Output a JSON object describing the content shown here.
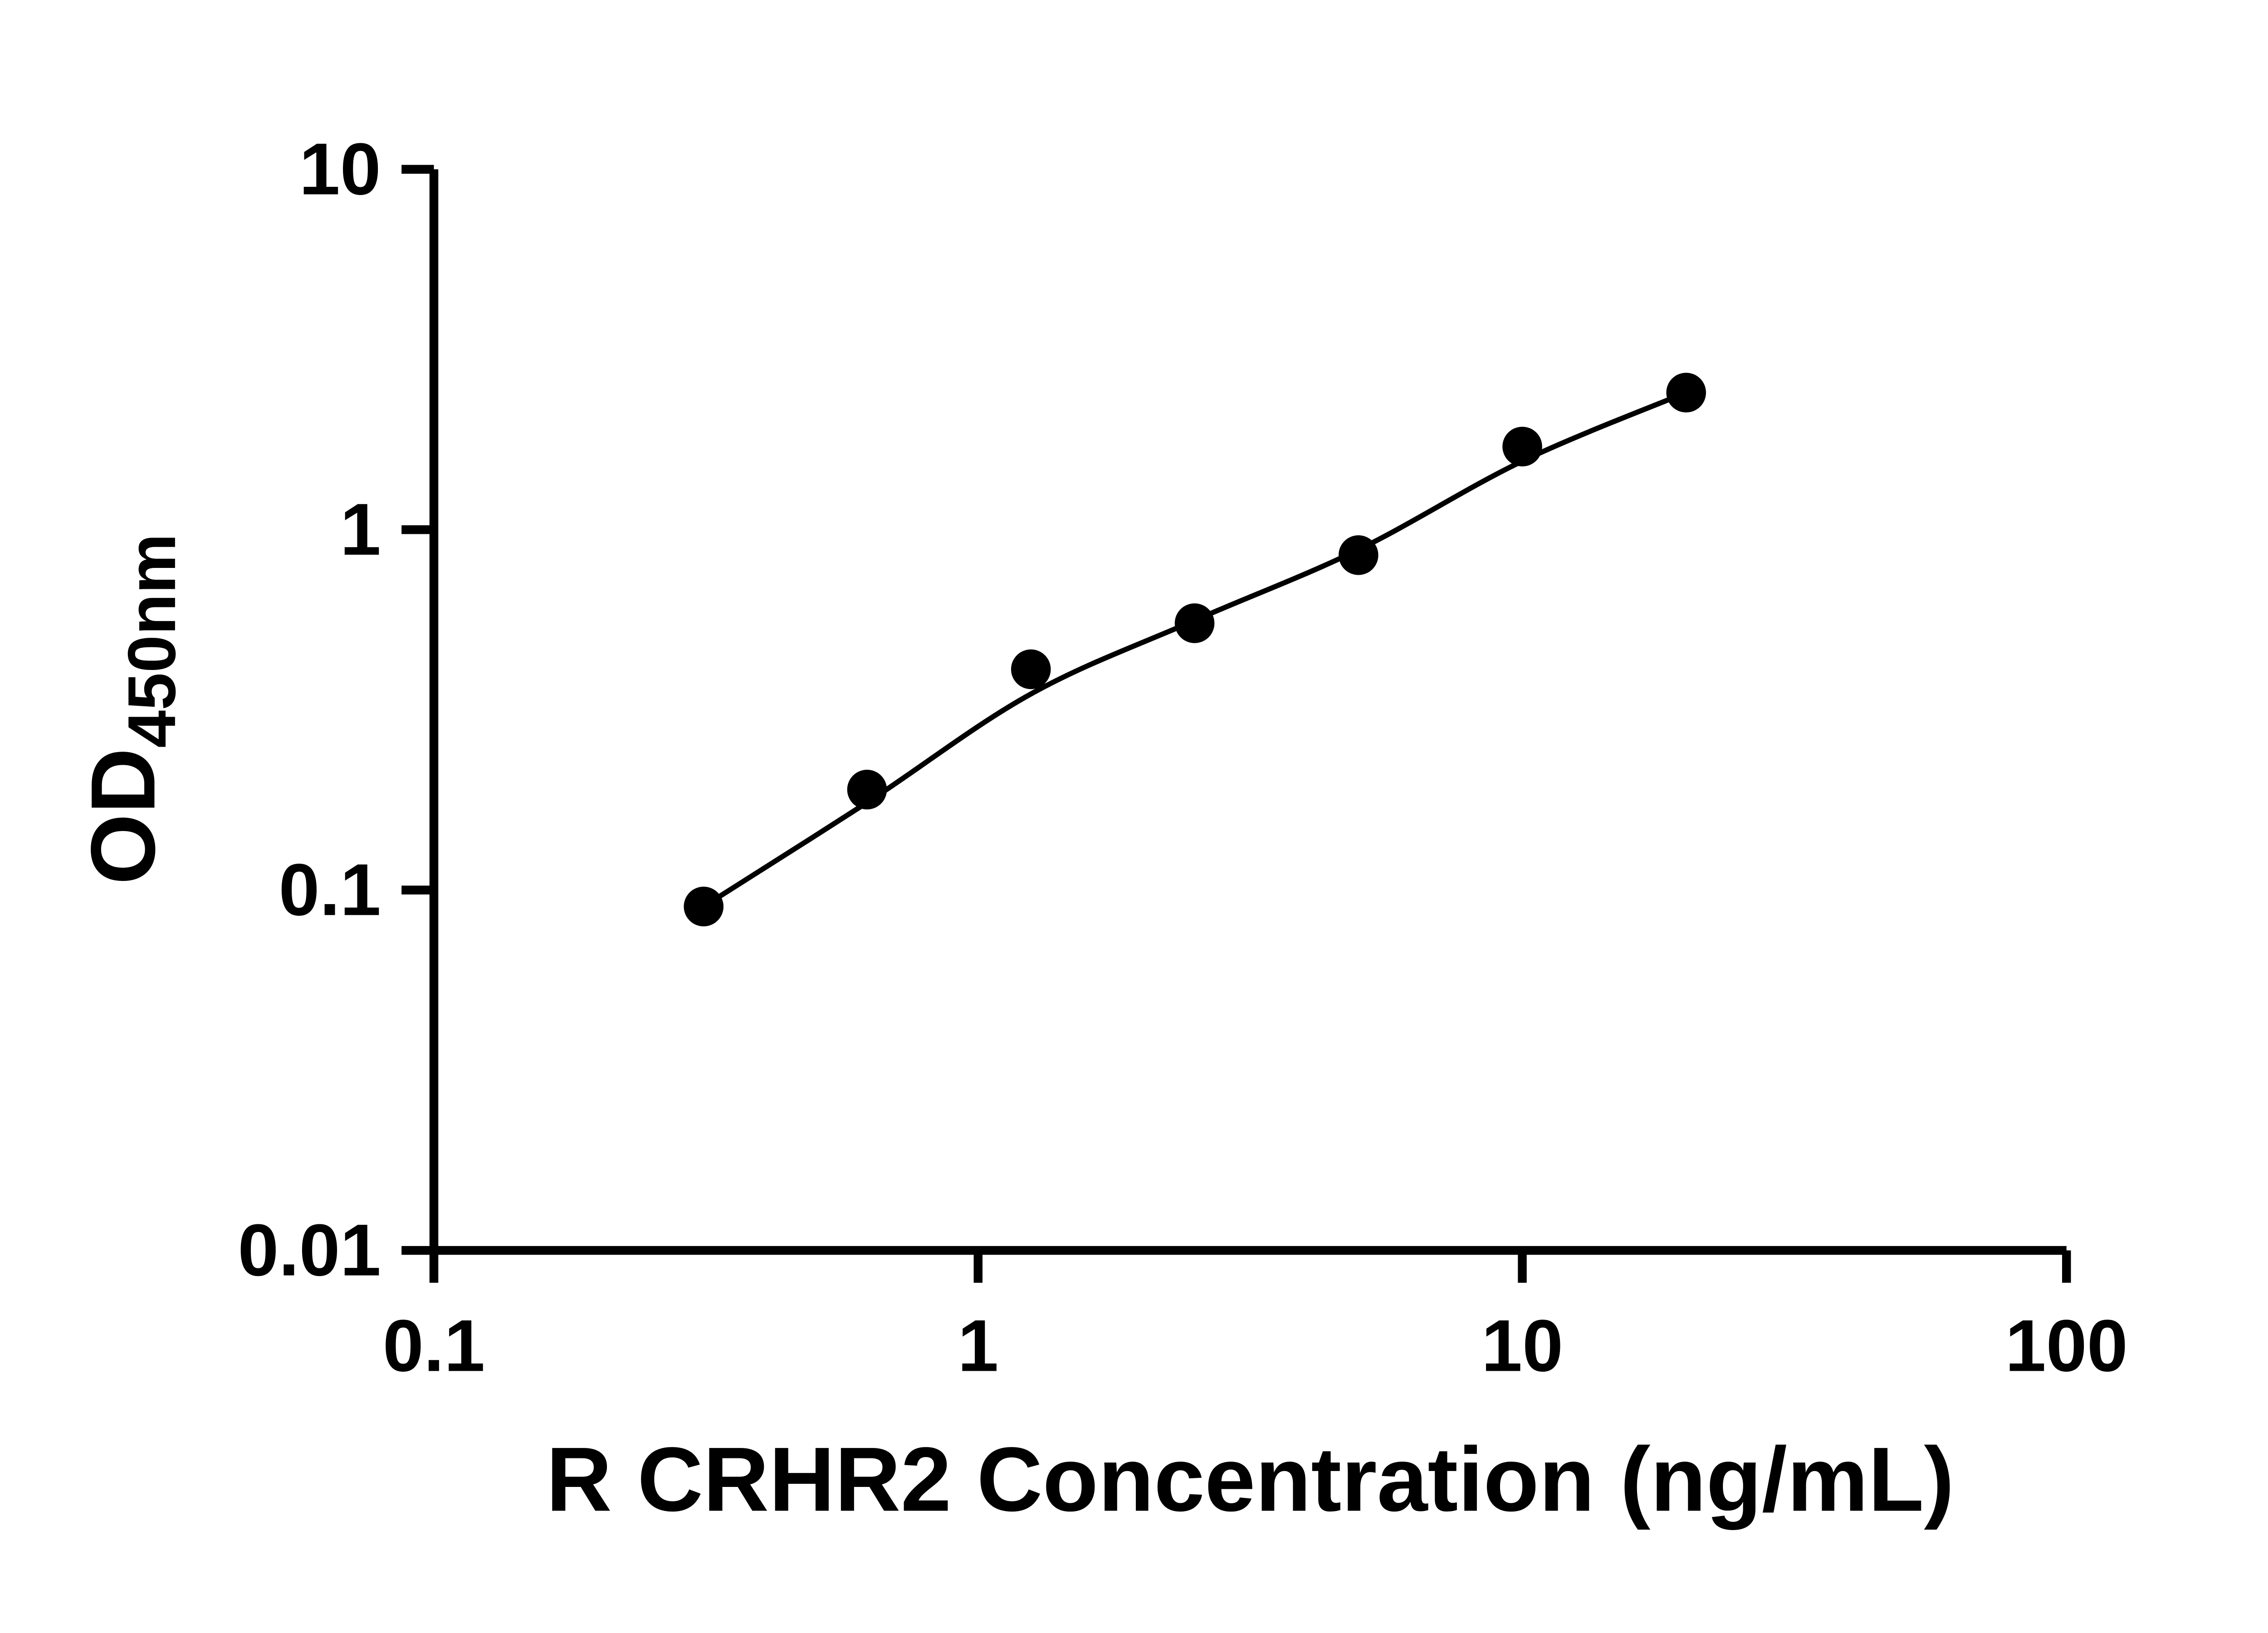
{
  "chart_data": {
    "type": "scatter",
    "title": "",
    "xlabel": "R CRHR2 Concentration (ng/mL)",
    "ylabel": "OD450nm",
    "ylabel_main": "OD",
    "ylabel_sub": "450nm",
    "x_scale": "log10",
    "y_scale": "log10",
    "xlim": [
      0.1,
      100
    ],
    "ylim": [
      0.01,
      10
    ],
    "grid": false,
    "legend_position": "none",
    "x_ticks": [
      {
        "value": 0.1,
        "label": "0.1"
      },
      {
        "value": 1,
        "label": "1"
      },
      {
        "value": 10,
        "label": "10"
      },
      {
        "value": 100,
        "label": "100"
      }
    ],
    "y_ticks": [
      {
        "value": 0.01,
        "label": "0.01"
      },
      {
        "value": 0.1,
        "label": "0.1"
      },
      {
        "value": 1,
        "label": "1"
      },
      {
        "value": 10,
        "label": "10"
      }
    ],
    "series": [
      {
        "marker": "circle",
        "color": "#000000",
        "points": [
          {
            "x": 0.313,
            "y": 0.09
          },
          {
            "x": 0.625,
            "y": 0.19
          },
          {
            "x": 1.25,
            "y": 0.41
          },
          {
            "x": 2.5,
            "y": 0.55
          },
          {
            "x": 5,
            "y": 0.85
          },
          {
            "x": 10,
            "y": 1.7
          },
          {
            "x": 20,
            "y": 2.4
          }
        ]
      }
    ],
    "fit_curve": {
      "color": "#000000",
      "points": [
        {
          "x": 0.313,
          "y": 0.09
        },
        {
          "x": 0.625,
          "y": 0.175
        },
        {
          "x": 1.25,
          "y": 0.35
        },
        {
          "x": 2.5,
          "y": 0.56
        },
        {
          "x": 5,
          "y": 0.88
        },
        {
          "x": 10,
          "y": 1.55
        },
        {
          "x": 20,
          "y": 2.4
        }
      ]
    }
  },
  "colors": {
    "background": "#ffffff",
    "ink": "#000000"
  }
}
